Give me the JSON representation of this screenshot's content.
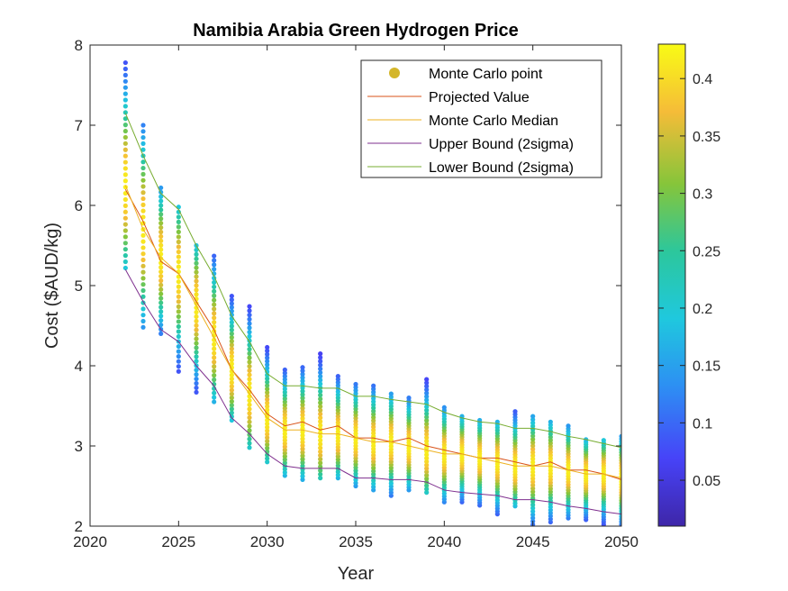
{
  "chart_data": {
    "type": "scatter",
    "title": "Namibia Arabia Green Hydrogen Price",
    "xlabel": "Year",
    "ylabel": "Cost ($AUD/kg)",
    "xlim": [
      2020,
      2050
    ],
    "ylim": [
      2,
      8
    ],
    "xticks": [
      "2020",
      "2025",
      "2030",
      "2035",
      "2040",
      "2045",
      "2050"
    ],
    "yticks": [
      "2",
      "3",
      "4",
      "5",
      "6",
      "7",
      "8"
    ],
    "grid": false,
    "legend_position": "top-right",
    "years": [
      2022,
      2023,
      2024,
      2025,
      2026,
      2027,
      2028,
      2029,
      2030,
      2031,
      2032,
      2033,
      2034,
      2035,
      2036,
      2037,
      2038,
      2039,
      2040,
      2041,
      2042,
      2043,
      2044,
      2045,
      2046,
      2047,
      2048,
      2049,
      2050
    ],
    "series": [
      {
        "name": "Monte Carlo point",
        "type": "scatter",
        "color": "#d4b62a",
        "y_min": [
          5.22,
          4.48,
          4.4,
          3.93,
          3.67,
          3.55,
          3.32,
          2.98,
          2.8,
          2.63,
          2.58,
          2.6,
          2.6,
          2.5,
          2.45,
          2.38,
          2.45,
          2.42,
          2.3,
          2.3,
          2.26,
          2.15,
          2.25,
          2.02,
          2.05,
          2.1,
          2.08,
          2.02,
          2.02
        ],
        "y_max": [
          7.78,
          7.0,
          6.22,
          5.98,
          5.5,
          5.37,
          4.87,
          4.74,
          4.23,
          3.95,
          3.98,
          4.15,
          3.87,
          3.77,
          3.75,
          3.65,
          3.6,
          3.83,
          3.48,
          3.37,
          3.32,
          3.3,
          3.43,
          3.37,
          3.3,
          3.25,
          3.08,
          3.07,
          3.12
        ]
      },
      {
        "name": "Projected Value",
        "type": "line",
        "color": "#d95319",
        "values": [
          6.2,
          5.8,
          5.3,
          5.15,
          4.8,
          4.45,
          3.95,
          3.7,
          3.4,
          3.25,
          3.3,
          3.2,
          3.25,
          3.1,
          3.1,
          3.05,
          3.1,
          3.0,
          2.95,
          2.9,
          2.85,
          2.85,
          2.8,
          2.75,
          2.8,
          2.7,
          2.7,
          2.65,
          2.58
        ]
      },
      {
        "name": "Monte Carlo Median",
        "type": "line",
        "color": "#edb120",
        "values": [
          6.25,
          5.7,
          5.35,
          5.15,
          4.75,
          4.35,
          3.95,
          3.65,
          3.35,
          3.2,
          3.2,
          3.15,
          3.15,
          3.1,
          3.05,
          3.05,
          3.0,
          2.95,
          2.9,
          2.9,
          2.85,
          2.8,
          2.75,
          2.75,
          2.75,
          2.7,
          2.65,
          2.65,
          2.6
        ]
      },
      {
        "name": "Upper Bound (2sigma)",
        "type": "line",
        "color": "#7e2f8e",
        "values": [
          5.2,
          4.8,
          4.45,
          4.3,
          4.0,
          3.75,
          3.35,
          3.15,
          2.9,
          2.75,
          2.72,
          2.72,
          2.72,
          2.6,
          2.6,
          2.58,
          2.58,
          2.55,
          2.45,
          2.42,
          2.4,
          2.38,
          2.33,
          2.33,
          2.3,
          2.25,
          2.22,
          2.18,
          2.15
        ]
      },
      {
        "name": "Lower Bound (2sigma)",
        "type": "line",
        "color": "#77ac30",
        "values": [
          7.15,
          6.62,
          6.15,
          5.95,
          5.5,
          5.12,
          4.62,
          4.3,
          3.9,
          3.75,
          3.75,
          3.72,
          3.72,
          3.62,
          3.62,
          3.58,
          3.55,
          3.52,
          3.42,
          3.35,
          3.3,
          3.28,
          3.22,
          3.22,
          3.18,
          3.12,
          3.08,
          3.03,
          2.98
        ]
      }
    ],
    "colorbar": {
      "min": 0.01,
      "max": 0.43,
      "ticks": [
        "0.05",
        "0.1",
        "0.15",
        "0.2",
        "0.25",
        "0.3",
        "0.35",
        "0.4"
      ],
      "colormap": "parula",
      "stops": [
        "#3e26a8",
        "#4743f8",
        "#2d8ff3",
        "#1fc8de",
        "#2cc79c",
        "#86c53a",
        "#f5bc38",
        "#f9fb15"
      ]
    }
  }
}
